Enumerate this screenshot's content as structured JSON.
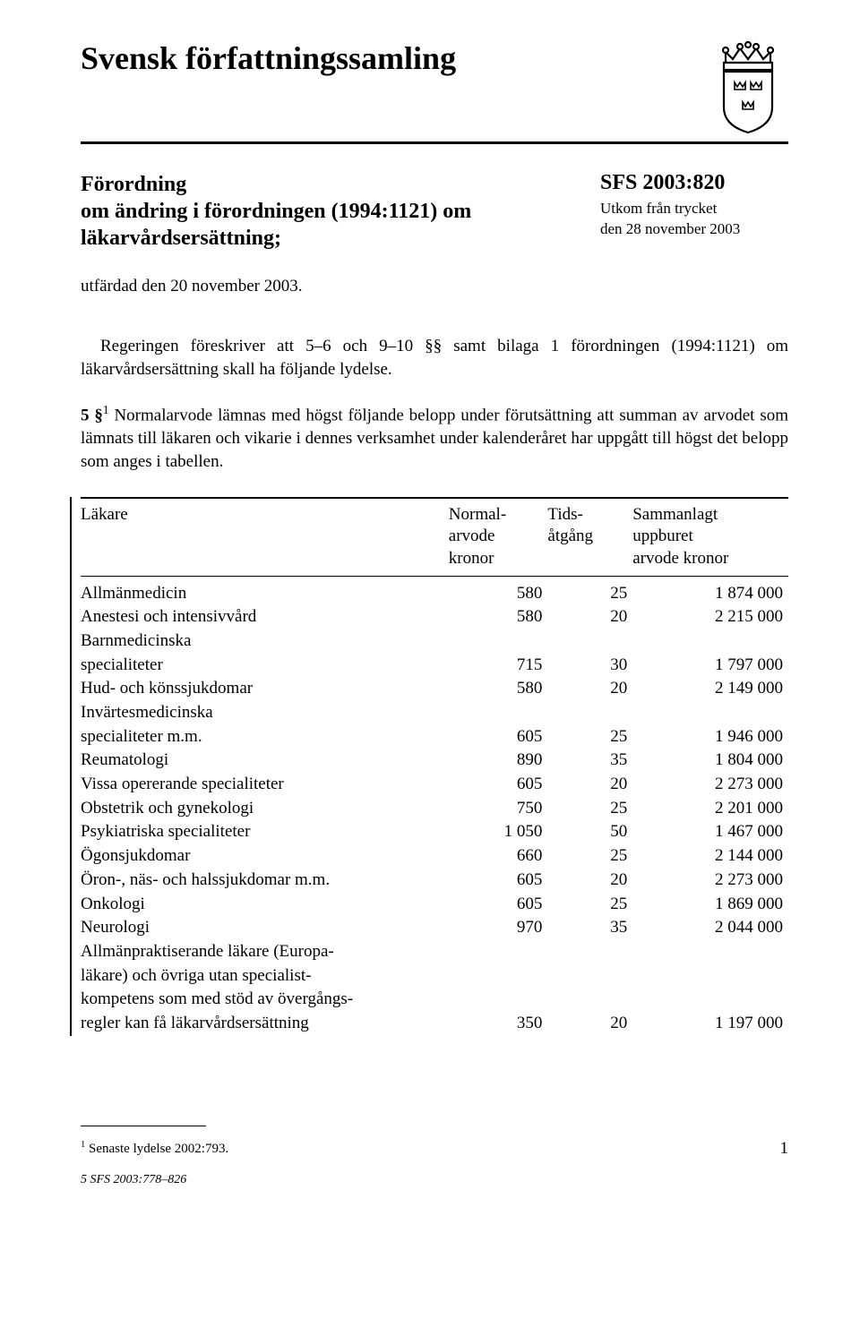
{
  "header": {
    "series_title": "Svensk författningssamling"
  },
  "ordinance": {
    "heading_line1": "Förordning",
    "heading_line2": "om ändring i förordningen (1994:1121) om",
    "heading_line3": "läkarvårdsersättning;"
  },
  "sfs": {
    "number": "SFS 2003:820",
    "meta_line1": "Utkom från trycket",
    "meta_line2": "den 28 november 2003"
  },
  "issued": "utfärdad den 20 november 2003.",
  "preamble": "Regeringen föreskriver att 5–6 och 9–10 §§ samt bilaga 1 förordningen (1994:1121) om läkarvårdsersättning skall ha följande lydelse.",
  "para5": {
    "lead": "5 §",
    "sup": "1",
    "text": "    Normalarvode lämnas med högst följande belopp under förutsättning att summan av arvodet som lämnats till läkaren och vikarie i dennes verksamhet under kalenderåret har uppgått till högst det belopp som anges i tabellen."
  },
  "table": {
    "columns": {
      "c1": "Läkare",
      "c2a": "Normal-",
      "c2b": "arvode",
      "c2c": "kronor",
      "c3a": "Tids-",
      "c3b": "åtgång",
      "c4a": "Sammanlagt",
      "c4b": "uppburet",
      "c4c": "arvode kronor"
    },
    "rows": [
      {
        "label": "Allmänmedicin",
        "n1": "580",
        "n2": "25",
        "n3": "1 874 000"
      },
      {
        "label": "Anestesi och intensivvård",
        "n1": "580",
        "n2": "20",
        "n3": "2 215 000"
      },
      {
        "label": "Barnmedicinska",
        "n1": "",
        "n2": "",
        "n3": ""
      },
      {
        "label": "specialiteter",
        "n1": "715",
        "n2": "30",
        "n3": "1 797 000"
      },
      {
        "label": "Hud- och könssjukdomar",
        "n1": "580",
        "n2": "20",
        "n3": "2 149 000"
      },
      {
        "label": "Invärtesmedicinska",
        "n1": "",
        "n2": "",
        "n3": ""
      },
      {
        "label": "specialiteter m.m.",
        "n1": "605",
        "n2": "25",
        "n3": "1 946 000"
      },
      {
        "label": "Reumatologi",
        "n1": "890",
        "n2": "35",
        "n3": "1 804 000"
      },
      {
        "label": "Vissa opererande specialiteter",
        "n1": "605",
        "n2": "20",
        "n3": "2 273 000"
      },
      {
        "label": "Obstetrik och gynekologi",
        "n1": "750",
        "n2": "25",
        "n3": "2 201 000"
      },
      {
        "label": "Psykiatriska specialiteter",
        "n1": "1 050",
        "n2": "50",
        "n3": "1 467 000"
      },
      {
        "label": "Ögonsjukdomar",
        "n1": "660",
        "n2": "25",
        "n3": "2 144 000"
      },
      {
        "label": "Öron-, näs- och halssjukdomar m.m.",
        "n1": "605",
        "n2": "20",
        "n3": "2 273 000"
      },
      {
        "label": "Onkologi",
        "n1": "605",
        "n2": "25",
        "n3": "1 869 000"
      },
      {
        "label": "Neurologi",
        "n1": "970",
        "n2": "35",
        "n3": "2 044 000"
      },
      {
        "label": "Allmänpraktiserande läkare (Europa-",
        "n1": "",
        "n2": "",
        "n3": ""
      },
      {
        "label": "läkare) och övriga utan specialist-",
        "n1": "",
        "n2": "",
        "n3": ""
      },
      {
        "label": "kompetens som med stöd av övergångs-",
        "n1": "",
        "n2": "",
        "n3": ""
      },
      {
        "label": "regler kan få läkarvårdsersättning",
        "n1": "350",
        "n2": "20",
        "n3": "1 197 000"
      }
    ]
  },
  "footnote": {
    "sup": "1",
    "text": " Senaste lydelse 2002:793."
  },
  "page_number": "1",
  "gutter": "5  SFS 2003:778–826"
}
